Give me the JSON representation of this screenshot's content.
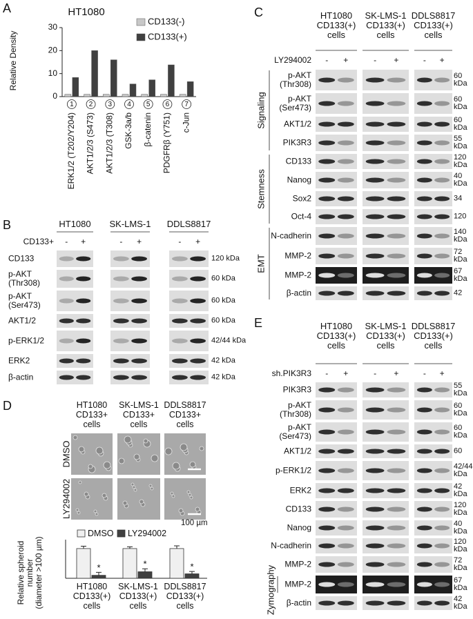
{
  "chart_data": [
    {
      "type": "bar",
      "panel": "A",
      "title": "HT1080",
      "ylabel": "Relative Density",
      "categories": [
        "ERK1/2 (T202/Y204)",
        "AKT1/2/3 (S473)",
        "AKT1/2/3 (T308)",
        "GSK-3a/b",
        "β-catenin",
        "PDGFRβ (Y751)",
        "c-Jun"
      ],
      "category_numbers": [
        "1",
        "2",
        "3",
        "4",
        "5",
        "6",
        "7"
      ],
      "ylim": [
        0,
        30
      ],
      "yticks": [
        0,
        10,
        20,
        30
      ],
      "series": [
        {
          "name": "CD133(-)",
          "color": "#c8c8c8",
          "values": [
            1,
            1,
            1,
            1,
            1,
            1,
            1
          ]
        },
        {
          "name": "CD133(+)",
          "color": "#404040",
          "values": [
            8.3,
            20,
            16,
            5.5,
            7.3,
            13.8,
            6.5
          ]
        }
      ]
    },
    {
      "type": "bar",
      "panel": "D",
      "ylabel": "Relative spheroid\nnumber\n(diameter >100 µm)",
      "categories": [
        "HT1080\nCD133(+)\ncells",
        "SK-LMS-1\nCD133(+)\ncells",
        "DDLS8817\nCD133(+)\ncells"
      ],
      "ylim": [
        0,
        1.3
      ],
      "series": [
        {
          "name": "DMSO",
          "color": "#f0f0f0",
          "values": [
            1,
            1,
            1
          ],
          "errors": [
            0.08,
            0.06,
            0.09
          ]
        },
        {
          "name": "LY294002",
          "color": "#404040",
          "values": [
            0.1,
            0.22,
            0.15
          ],
          "errors": [
            0.1,
            0.1,
            0.08
          ],
          "annotations": [
            "*",
            "*",
            "*"
          ]
        }
      ]
    }
  ],
  "blots": {
    "B": {
      "label": "B",
      "columns": [
        "HT1080",
        "SK-LMS-1",
        "DDLS8817"
      ],
      "treatment": "CD133+",
      "signs": [
        "-",
        "+"
      ],
      "sections": [
        {
          "rows": [
            {
              "label": "CD133",
              "size": "120 kDa"
            },
            {
              "label": "p-AKT\n(Thr308)",
              "size": "60 kDa"
            },
            {
              "label": "p-AKT\n(Ser473)",
              "size": "60 kDa"
            },
            {
              "label": "AKT1/2",
              "size": "60 kDa"
            },
            {
              "label": "p-ERK1/2",
              "size": "42/44 kDa"
            },
            {
              "label": "ERK2",
              "size": "42 kDa"
            },
            {
              "label": "β-actin",
              "size": "42 kDa"
            }
          ]
        }
      ]
    },
    "C": {
      "label": "C",
      "columns": [
        "HT1080\nCD133(+)\ncells",
        "SK-LMS-1\nCD133(+)\ncells",
        "DDLS8817\nCD133(+)\ncells"
      ],
      "treatment": "LY294002",
      "signs": [
        "-",
        "+"
      ],
      "sections": [
        {
          "label": "Signaling",
          "rows": [
            {
              "label": "p-AKT\n(Thr308)",
              "size": "60\nkDa"
            },
            {
              "label": "p-AKT\n(Ser473)",
              "size": "60\nkDa"
            },
            {
              "label": "AKT1/2",
              "size": "60\nkDa"
            },
            {
              "label": "PIK3R3",
              "size": "55\nkDa"
            }
          ]
        },
        {
          "label": "Stemness",
          "rows": [
            {
              "label": "CD133",
              "size": "120\nkDa"
            },
            {
              "label": "Nanog",
              "size": "40\nkDa"
            },
            {
              "label": "Sox2",
              "size": "34"
            },
            {
              "label": "Oct-4",
              "size": "120"
            }
          ]
        },
        {
          "label": "EMT",
          "rows": [
            {
              "label": "N-cadherin",
              "size": "140\nkDa"
            },
            {
              "label": "MMP-2",
              "size": "72\nkDa"
            },
            {
              "label": "MMP-2",
              "size": "67\nkDa",
              "dark": true
            },
            {
              "label": "β-actin",
              "size": "42"
            }
          ]
        }
      ]
    },
    "E": {
      "label": "E",
      "columns": [
        "HT1080\nCD133(+)\ncells",
        "SK-LMS-1\nCD133(+)\ncells",
        "DDLS8817\nCD133(+)\ncells"
      ],
      "treatment": "sh.PIK3R3",
      "signs": [
        "-",
        "+"
      ],
      "sections": [
        {
          "rows": [
            {
              "label": "PIK3R3",
              "size": "55\nkDa"
            },
            {
              "label": "p-AKT\n(Thr308)",
              "size": "60\nkDa"
            },
            {
              "label": "p-AKT\n(Ser473)",
              "size": "60\nkDa"
            },
            {
              "label": "AKT1/2",
              "size": "60"
            },
            {
              "label": "p-ERK1/2",
              "size": "42/44\nkDa"
            },
            {
              "label": "ERK2",
              "size": "42\nkDa"
            },
            {
              "label": "CD133",
              "size": "120\nkDa"
            },
            {
              "label": "Nanog",
              "size": "40\nkDa"
            },
            {
              "label": "N-cadherin",
              "size": "120\nkDa"
            },
            {
              "label": "MMP-2",
              "size": "72\nkDa"
            }
          ]
        },
        {
          "label": "Zymography",
          "rows": [
            {
              "label": "MMP-2",
              "size": "67\nkDa",
              "dark": true
            }
          ]
        },
        {
          "rows": [
            {
              "label": "β-actin",
              "size": "42\nkDa"
            }
          ]
        }
      ]
    }
  },
  "spheroid_images": {
    "columns": [
      "HT1080\nCD133+\ncells",
      "SK-LMS-1\nCD133+\ncells",
      "DDLS8817\nCD133+\ncells"
    ],
    "rows": [
      "DMSO",
      "LY294002"
    ],
    "scale_bar": "100 µm"
  }
}
